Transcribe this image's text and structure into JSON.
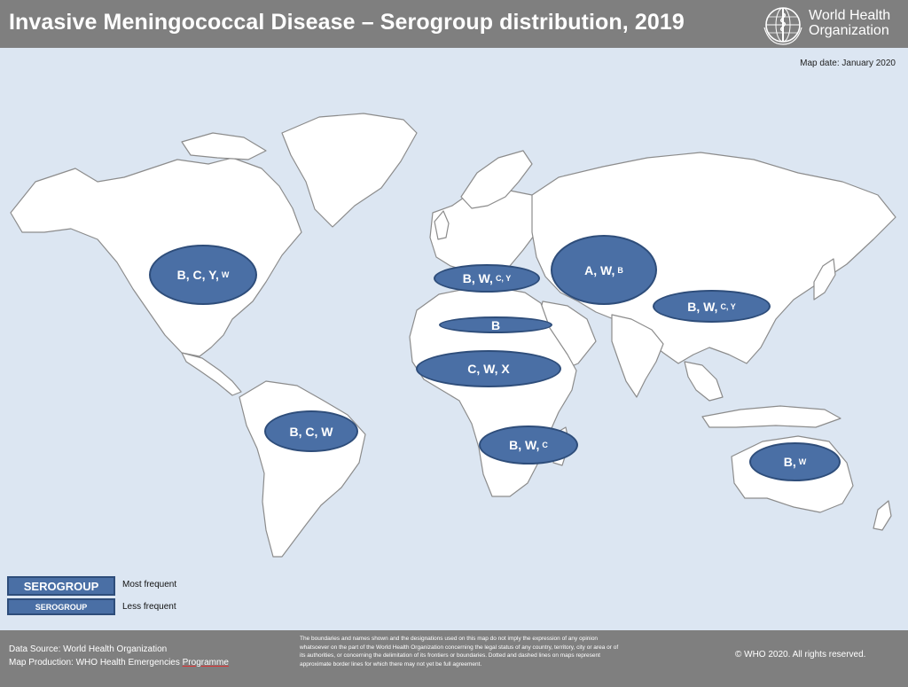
{
  "header": {
    "title": "Invasive Meningococcal Disease – Serogroup distribution, 2019",
    "org_name_line1": "World Health",
    "org_name_line2": "Organization"
  },
  "map_date": "Map date: January 2020",
  "regions": [
    {
      "major": "B, C, Y,",
      "minor": "W"
    },
    {
      "major": "B, W,",
      "minor": "C, Y"
    },
    {
      "major": "A, W,",
      "minor": "B"
    },
    {
      "major": "B, W,",
      "minor": "C, Y"
    },
    {
      "major": "B",
      "minor": ""
    },
    {
      "major": "C, W, X",
      "minor": ""
    },
    {
      "major": "B, C, W",
      "minor": ""
    },
    {
      "major": "B, W,",
      "minor": "C"
    },
    {
      "major": "B,",
      "minor": "W"
    }
  ],
  "legend": {
    "items": [
      {
        "box": "SEROGROUP",
        "label": "Most frequent"
      },
      {
        "box": "SEROGROUP",
        "label": "Less frequent"
      }
    ]
  },
  "footer": {
    "data_source": "Data Source: World Health Organization",
    "map_production_prefix": "Map Production: WHO Health Emergencies ",
    "map_production_underlined": "Programme",
    "disclaimer": "The boundaries and names shown and the designations used on this map do not imply the expression of any opinion whatsoever on the part of the World Health Organization concerning the legal status of any country, territory, city or area or of its authorities, or concerning the delimitation of its frontiers or boundaries. Dotted and dashed lines on maps represent approximate border lines for which there may not yet be full agreement.",
    "copyright": "© WHO 2020. All rights reserved."
  },
  "colors": {
    "ocean": "#dce6f2",
    "land": "#ffffff",
    "ellipse_fill": "#4a6fa5",
    "header_bg": "#7f7f7f"
  },
  "icons": [
    "who-emblem-icon"
  ]
}
